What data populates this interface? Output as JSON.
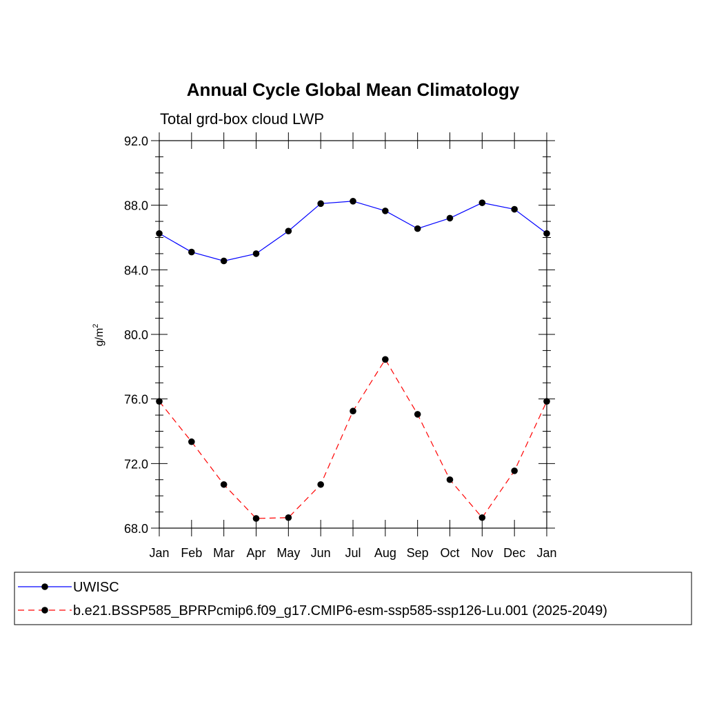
{
  "chart_data": {
    "type": "line",
    "title": "Annual Cycle Global Mean Climatology",
    "subtitle": "Total grd-box cloud LWP",
    "ylabel": "g/m",
    "ylabel_superscript": "2",
    "ylim": [
      68.0,
      92.0
    ],
    "yticks": [
      68.0,
      72.0,
      76.0,
      80.0,
      84.0,
      88.0,
      92.0
    ],
    "ytick_labels": [
      "68.0",
      "72.0",
      "76.0",
      "80.0",
      "84.0",
      "88.0",
      "92.0"
    ],
    "categories": [
      "Jan",
      "Feb",
      "Mar",
      "Apr",
      "May",
      "Jun",
      "Jul",
      "Aug",
      "Sep",
      "Oct",
      "Nov",
      "Dec",
      "Jan"
    ],
    "legend_position": "bottom",
    "series": [
      {
        "name": "UWISC",
        "color": "#0000ff",
        "style": "solid",
        "marker": "circle",
        "values": [
          86.25,
          85.1,
          84.55,
          85.0,
          86.4,
          88.1,
          88.25,
          87.65,
          86.55,
          87.2,
          88.15,
          87.75,
          86.25
        ]
      },
      {
        "name": "b.e21.BSSP585_BPRPcmip6.f09_g17.CMIP6-esm-ssp585-ssp126-Lu.001 (2025-2049)",
        "color": "#ff0000",
        "style": "dashed",
        "marker": "circle",
        "values": [
          75.85,
          73.35,
          70.7,
          68.6,
          68.65,
          70.7,
          75.25,
          78.45,
          75.05,
          71.0,
          68.65,
          71.55,
          75.85
        ]
      }
    ]
  }
}
